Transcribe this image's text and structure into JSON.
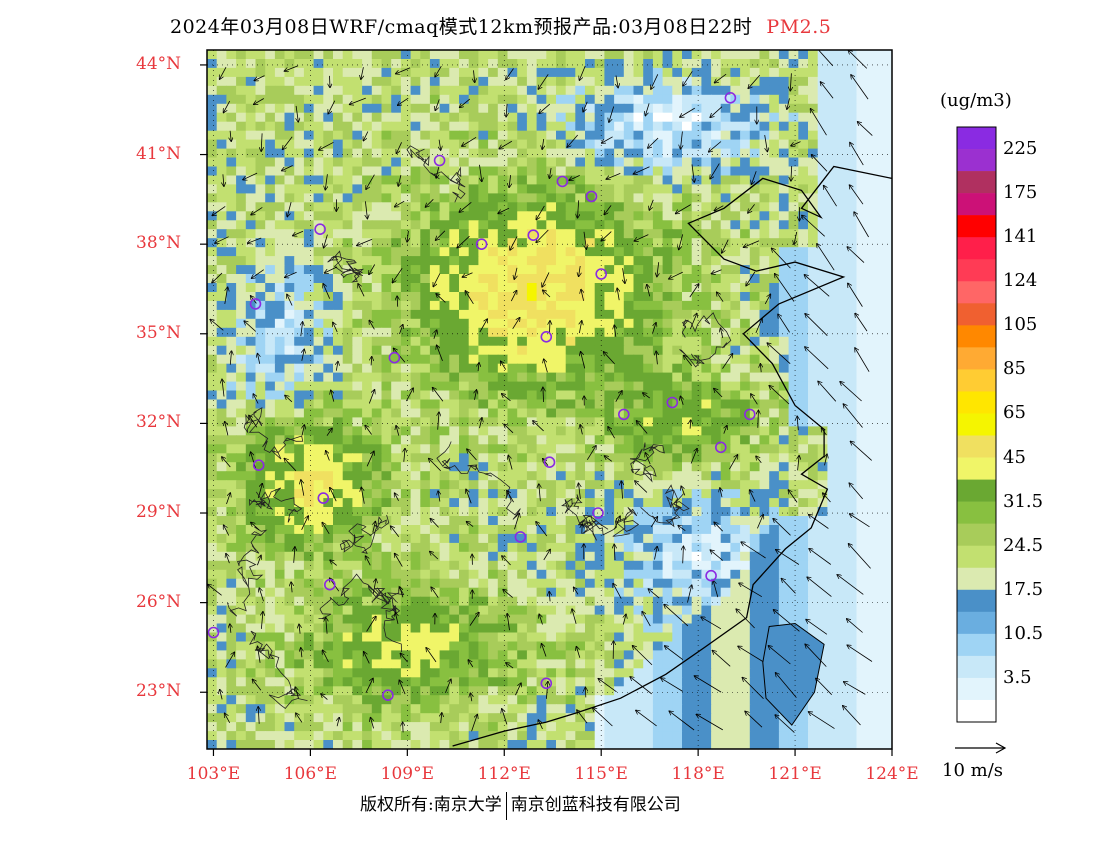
{
  "title": {
    "text": "2024年03月08日WRF/cmaq模式12km预报产品:03月08日22时",
    "variable": "PM2.5"
  },
  "map": {
    "lat_labels": [
      "44°N",
      "41°N",
      "38°N",
      "35°N",
      "32°N",
      "29°N",
      "26°N",
      "23°N"
    ],
    "lon_labels": [
      "103°E",
      "106°E",
      "109°E",
      "112°E",
      "115°E",
      "118°E",
      "121°E",
      "124°E"
    ],
    "lat_values": [
      44,
      41,
      38,
      35,
      32,
      29,
      26,
      23
    ],
    "lon_values": [
      103,
      106,
      109,
      112,
      115,
      118,
      121,
      124
    ],
    "extent": {
      "lon_min": 102.8,
      "lon_max": 124.0,
      "lat_min": 21.1,
      "lat_max": 44.5
    },
    "cities": [
      {
        "lon": 119.0,
        "lat": 42.9
      },
      {
        "lon": 110.0,
        "lat": 40.8
      },
      {
        "lon": 113.8,
        "lat": 40.1
      },
      {
        "lon": 114.7,
        "lat": 39.6
      },
      {
        "lon": 106.3,
        "lat": 38.5
      },
      {
        "lon": 111.3,
        "lat": 38.0
      },
      {
        "lon": 112.9,
        "lat": 38.3
      },
      {
        "lon": 115.0,
        "lat": 37.0
      },
      {
        "lon": 104.3,
        "lat": 36.0
      },
      {
        "lon": 113.3,
        "lat": 34.9
      },
      {
        "lon": 108.6,
        "lat": 34.2
      },
      {
        "lon": 117.2,
        "lat": 32.7
      },
      {
        "lon": 115.7,
        "lat": 32.3
      },
      {
        "lon": 119.6,
        "lat": 32.3
      },
      {
        "lon": 118.7,
        "lat": 31.2
      },
      {
        "lon": 104.4,
        "lat": 30.6
      },
      {
        "lon": 113.4,
        "lat": 30.7
      },
      {
        "lon": 106.4,
        "lat": 29.5
      },
      {
        "lon": 114.9,
        "lat": 29.0
      },
      {
        "lon": 112.5,
        "lat": 28.2
      },
      {
        "lon": 106.6,
        "lat": 26.6
      },
      {
        "lon": 118.4,
        "lat": 26.9
      },
      {
        "lon": 103.0,
        "lat": 25.0
      },
      {
        "lon": 108.4,
        "lat": 22.9
      },
      {
        "lon": 113.3,
        "lat": 23.3
      }
    ]
  },
  "colorbar": {
    "unit": "(ug/m3)",
    "labels": [
      "225",
      "175",
      "141",
      "124",
      "105",
      "85",
      "65",
      "45",
      "31.5",
      "24.5",
      "17.5",
      "10.5",
      "3.5"
    ],
    "colors_top_to_bottom": [
      "#8a2be2",
      "#9b30d0",
      "#b03060",
      "#cc1177",
      "#ff0000",
      "#ff1f4a",
      "#ff3b55",
      "#ff6666",
      "#f06030",
      "#ff8800",
      "#ffaa33",
      "#ffcc33",
      "#ffe600",
      "#f5f500",
      "#f0e060",
      "#f0f568",
      "#6aa832",
      "#88c040",
      "#a8cc5a",
      "#c2e070",
      "#dbeab0",
      "#4a90c8",
      "#6aaee0",
      "#9fd4f4",
      "#c8e8f8",
      "#e2f4fc",
      "#ffffff"
    ]
  },
  "wind_reference": {
    "label": "10 m/s"
  },
  "footer": {
    "left": "版权所有:南京大学",
    "right": "南京创蓝科技有限公司"
  }
}
